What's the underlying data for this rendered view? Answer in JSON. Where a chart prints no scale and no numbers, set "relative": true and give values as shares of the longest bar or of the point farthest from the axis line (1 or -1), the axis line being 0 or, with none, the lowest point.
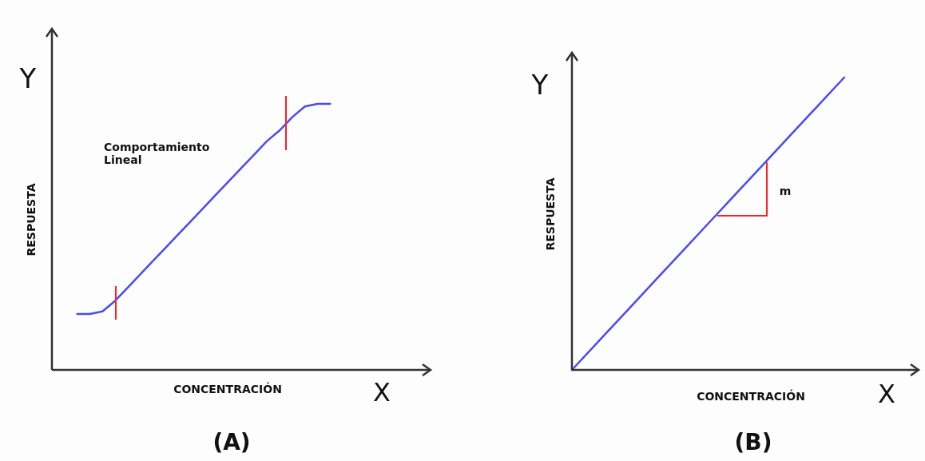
{
  "chart_data": [
    {
      "type": "line",
      "title": "(A)",
      "xlabel": "CONCENTRACIÓN",
      "ylabel": "RESPUESTA",
      "relative": true,
      "annotations": [
        "Comportamiento Lineal",
        "Y",
        "X"
      ],
      "categories": [
        null,
        null,
        null,
        null,
        null,
        null,
        null,
        null,
        null,
        null,
        null,
        null,
        null,
        null,
        null,
        null,
        null,
        null,
        null,
        null,
        null,
        null,
        null,
        null,
        null,
        null,
        null,
        null,
        null,
        null,
        null
      ],
      "series": [
        {
          "color": "#4a4af5",
          "values": [
            null,
            null,
            0.21,
            0.21,
            0.22,
            0.26,
            0.31,
            0.36,
            0.41,
            0.46,
            0.51,
            0.56,
            0.61,
            0.66,
            0.71,
            0.76,
            0.81,
            0.86,
            0.9,
            0.95,
            0.99,
            1,
            1,
            null,
            null,
            null,
            null,
            null,
            null,
            null,
            null
          ]
        }
      ]
    },
    {
      "type": "line",
      "title": "(B)",
      "xlabel": "CONCENTRACIÓN",
      "ylabel": "RESPUESTA",
      "relative": true,
      "annotations": [
        "m",
        "Y",
        "X"
      ],
      "categories": [
        null,
        null,
        null,
        null,
        null,
        null,
        null,
        null,
        null,
        null,
        null,
        null,
        null
      ],
      "series": [
        {
          "color": "#4a4af5",
          "values": [
            0,
            0.1,
            0.2,
            0.3,
            0.4,
            0.5,
            0.6,
            0.7,
            0.8,
            0.9,
            1,
            null,
            null
          ]
        }
      ]
    }
  ]
}
